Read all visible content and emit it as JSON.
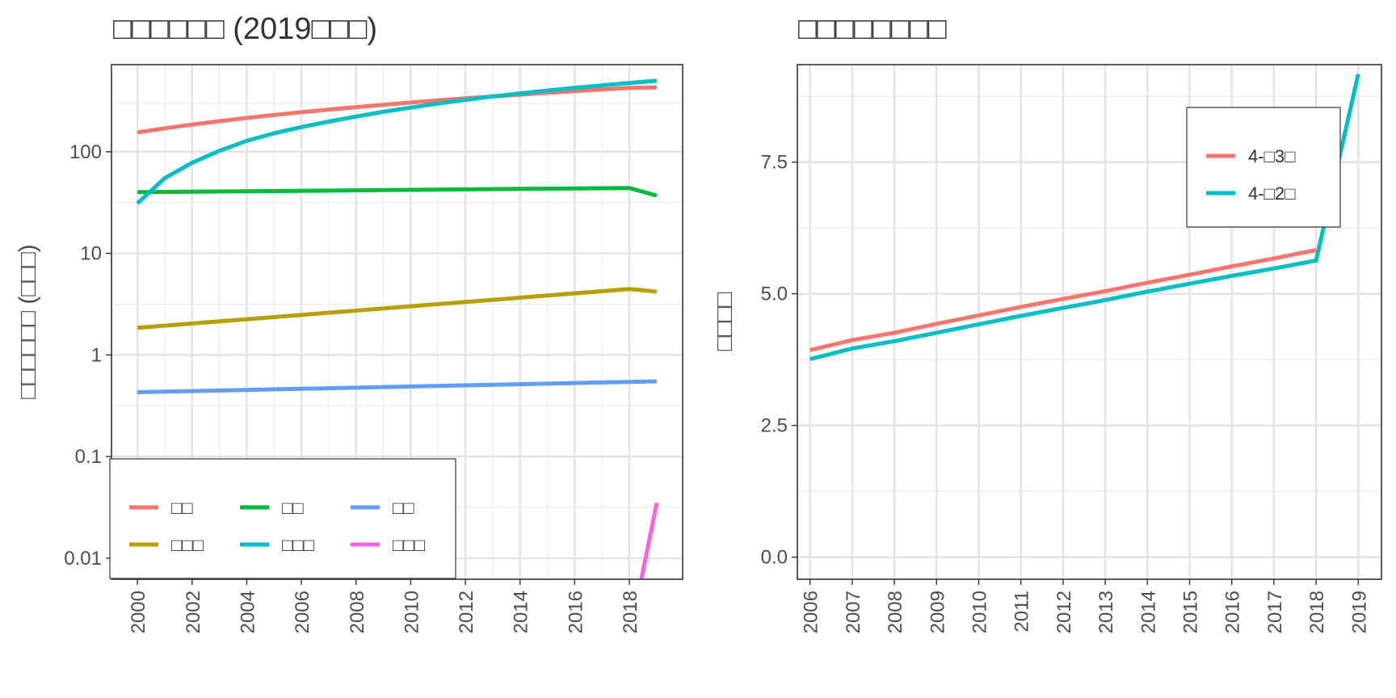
{
  "colors": {
    "s1": "#F8766D",
    "s2": "#00BA38",
    "s3": "#619CFF",
    "s4": "#B79F00",
    "s5": "#00BFC4",
    "s6": "#F564E3"
  },
  "chart_data": [
    {
      "type": "line",
      "title": "□□□□□□ (2019□□□)",
      "xlabel": "",
      "ylabel": "□□□□□□ (□□□)",
      "yscale": "log10",
      "ylim": [
        0.0062,
        720
      ],
      "xlim": [
        1999.05,
        2019.95
      ],
      "x_ticks": [
        2000,
        2002,
        2004,
        2006,
        2008,
        2010,
        2012,
        2014,
        2016,
        2018
      ],
      "y_ticks": [
        0.01,
        0.1,
        1,
        10,
        100
      ],
      "y_tick_labels": [
        "0.01",
        "0.1",
        "1",
        "10",
        "100"
      ],
      "grid": true,
      "legend_position": "bottom-left",
      "legend_columns": 3,
      "series": [
        {
          "name": "□□",
          "color_key": "s1",
          "x": [
            2000,
            2001,
            2002,
            2003,
            2004,
            2005,
            2006,
            2007,
            2008,
            2009,
            2010,
            2011,
            2012,
            2013,
            2014,
            2015,
            2016,
            2017,
            2018,
            2019
          ],
          "y": [
            155,
            170,
            185,
            200,
            215,
            230,
            245,
            260,
            275,
            290,
            305,
            320,
            335,
            350,
            365,
            380,
            395,
            410,
            425,
            430
          ]
        },
        {
          "name": "□□",
          "color_key": "s2",
          "x": [
            2000,
            2018,
            2019
          ],
          "y": [
            40,
            44,
            37
          ]
        },
        {
          "name": "□□",
          "color_key": "s3",
          "x": [
            2000,
            2019
          ],
          "y": [
            0.43,
            0.55
          ]
        },
        {
          "name": "□□□",
          "color_key": "s4",
          "x": [
            2000,
            2018,
            2019
          ],
          "y": [
            1.85,
            4.45,
            4.2
          ]
        },
        {
          "name": "□□□",
          "color_key": "s5",
          "x": [
            2000,
            2001,
            2002,
            2003,
            2004,
            2005,
            2006,
            2007,
            2008,
            2009,
            2010,
            2011,
            2012,
            2013,
            2014,
            2015,
            2016,
            2017,
            2018,
            2019
          ],
          "y": [
            31,
            55,
            78,
            102,
            128,
            152,
            175,
            198,
            222,
            247,
            272,
            298,
            324,
            350,
            375,
            400,
            425,
            450,
            475,
            500
          ]
        },
        {
          "name": "□□□",
          "color_key": "s6",
          "x": [
            2018.4,
            2019
          ],
          "y": [
            0.0055,
            0.035
          ]
        }
      ]
    },
    {
      "type": "line",
      "title": "□□□□□□□□",
      "xlabel": "",
      "ylabel": "□□□□",
      "ylim": [
        -0.42,
        9.35
      ],
      "xlim": [
        2005.7,
        2019.55
      ],
      "x_ticks": [
        2006,
        2007,
        2008,
        2009,
        2010,
        2011,
        2012,
        2013,
        2014,
        2015,
        2016,
        2017,
        2018,
        2019
      ],
      "y_ticks": [
        0,
        2.5,
        5,
        7.5
      ],
      "y_tick_labels": [
        "0.0",
        "2.5",
        "5.0",
        "7.5"
      ],
      "grid": true,
      "legend_position": "top-right",
      "series": [
        {
          "name": "4-□3□",
          "color_key": "s1",
          "x": [
            2006,
            2007,
            2008,
            2009,
            2010,
            2011,
            2012,
            2013,
            2014,
            2015,
            2016,
            2017,
            2018
          ],
          "y": [
            3.93,
            4.12,
            4.26,
            4.43,
            4.59,
            4.75,
            4.9,
            5.05,
            5.21,
            5.36,
            5.52,
            5.67,
            5.83
          ]
        },
        {
          "name": "4-□2□",
          "color_key": "s5",
          "x": [
            2006,
            2007,
            2008,
            2009,
            2010,
            2011,
            2012,
            2013,
            2014,
            2015,
            2016,
            2017,
            2018,
            2019
          ],
          "y": [
            3.76,
            3.96,
            4.1,
            4.26,
            4.42,
            4.58,
            4.73,
            4.88,
            5.04,
            5.19,
            5.34,
            5.48,
            5.63,
            9.17
          ]
        }
      ]
    }
  ]
}
